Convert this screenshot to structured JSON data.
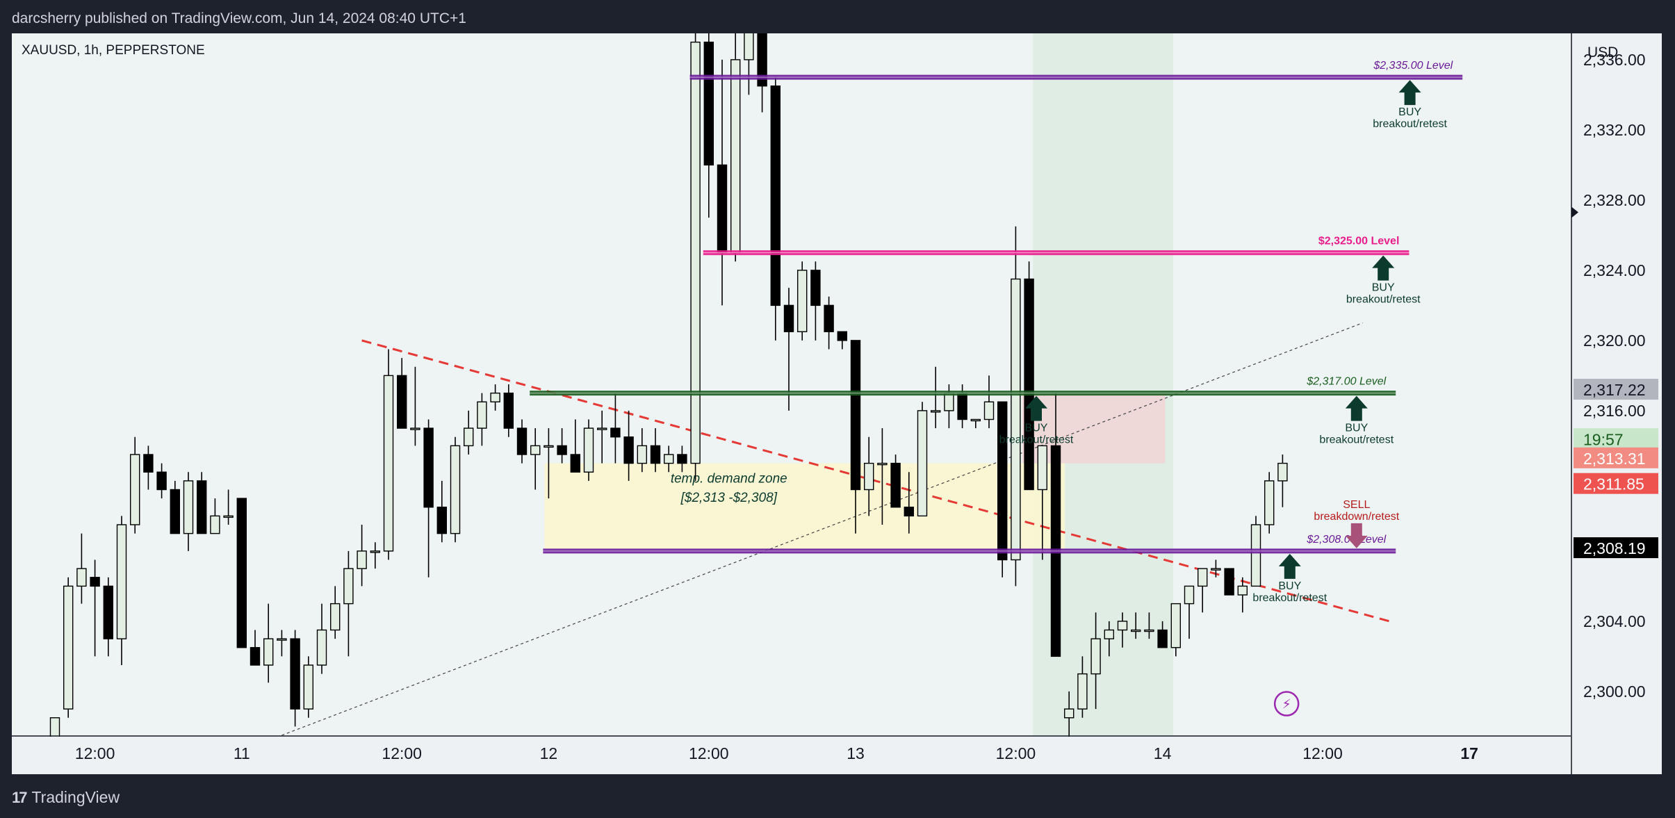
{
  "header": {
    "text": "darcsherry published on TradingView.com, Jun 14, 2024 08:40 UTC+1"
  },
  "chart": {
    "symbol_label": "XAUUSD, 1h, PEPPERSTONE",
    "currency": "USD"
  },
  "footer": {
    "brand": "TradingView"
  },
  "colors": {
    "bull_fill": "#e3efe3",
    "bear_fill": "#000000",
    "purple_level": "#6a1b9a",
    "pink_level": "#e91e8c",
    "green_level": "#1b5e20",
    "trend_red": "#e53935",
    "buy_arrow": "#0c3b2e",
    "sell_arrow": "#a8527a"
  },
  "chart_data": {
    "type": "candlestick",
    "symbol": "XAUUSD",
    "timeframe": "1h",
    "exchange": "PEPPERSTONE",
    "y_range": [
      2297.5,
      2337.5
    ],
    "y_ticks": [
      "2,336.00",
      "2,332.00",
      "2,328.00",
      "2,324.00",
      "2,320.00",
      "2,316.00",
      "2,304.00",
      "2,300.00"
    ],
    "y_tick_values": [
      2336,
      2332,
      2328,
      2324,
      2320,
      2316,
      2304,
      2300
    ],
    "x_labels": [
      "12:00",
      "11",
      "12:00",
      "12",
      "12:00",
      "13",
      "12:00",
      "14",
      "12:00",
      "17"
    ],
    "x_label_bars": [
      3,
      14,
      26,
      37,
      49,
      60,
      72,
      83,
      95,
      106
    ],
    "candles": [
      {
        "o": 2297,
        "h": 2298.5,
        "l": 2296,
        "c": 2298.5
      },
      {
        "o": 2299,
        "h": 2306.5,
        "l": 2298.5,
        "c": 2306
      },
      {
        "o": 2306,
        "h": 2309,
        "l": 2305,
        "c": 2307
      },
      {
        "o": 2306.5,
        "h": 2307.5,
        "l": 2302,
        "c": 2306
      },
      {
        "o": 2306,
        "h": 2306.5,
        "l": 2302,
        "c": 2303
      },
      {
        "o": 2303,
        "h": 2310,
        "l": 2301.5,
        "c": 2309.5
      },
      {
        "o": 2309.5,
        "h": 2314.5,
        "l": 2309,
        "c": 2313.5
      },
      {
        "o": 2313.5,
        "h": 2314,
        "l": 2311.5,
        "c": 2312.5
      },
      {
        "o": 2312.5,
        "h": 2313,
        "l": 2311,
        "c": 2311.5
      },
      {
        "o": 2311.5,
        "h": 2312,
        "l": 2309,
        "c": 2309
      },
      {
        "o": 2309,
        "h": 2312.5,
        "l": 2308,
        "c": 2312
      },
      {
        "o": 2312,
        "h": 2312.5,
        "l": 2309,
        "c": 2309
      },
      {
        "o": 2309,
        "h": 2311,
        "l": 2309,
        "c": 2310
      },
      {
        "o": 2310,
        "h": 2311.5,
        "l": 2309.5,
        "c": 2310
      },
      {
        "o": 2311,
        "h": 2311,
        "l": 2302.5,
        "c": 2302.5
      },
      {
        "o": 2302.5,
        "h": 2303.5,
        "l": 2301.5,
        "c": 2301.5
      },
      {
        "o": 2301.5,
        "h": 2305,
        "l": 2300.5,
        "c": 2303
      },
      {
        "o": 2303,
        "h": 2303.5,
        "l": 2302,
        "c": 2303
      },
      {
        "o": 2303,
        "h": 2303.5,
        "l": 2298,
        "c": 2299
      },
      {
        "o": 2299,
        "h": 2302,
        "l": 2298.5,
        "c": 2301.5
      },
      {
        "o": 2301.5,
        "h": 2305,
        "l": 2301,
        "c": 2303.5
      },
      {
        "o": 2303.5,
        "h": 2306,
        "l": 2303,
        "c": 2305
      },
      {
        "o": 2305,
        "h": 2308,
        "l": 2302,
        "c": 2307
      },
      {
        "o": 2307,
        "h": 2309.5,
        "l": 2306,
        "c": 2308
      },
      {
        "o": 2308,
        "h": 2308.5,
        "l": 2307,
        "c": 2308
      },
      {
        "o": 2308,
        "h": 2319.5,
        "l": 2307.5,
        "c": 2318
      },
      {
        "o": 2318,
        "h": 2319,
        "l": 2315,
        "c": 2315
      },
      {
        "o": 2315,
        "h": 2318.5,
        "l": 2314,
        "c": 2315
      },
      {
        "o": 2315,
        "h": 2315.5,
        "l": 2306.5,
        "c": 2310.5
      },
      {
        "o": 2310.5,
        "h": 2312,
        "l": 2308.5,
        "c": 2309
      },
      {
        "o": 2309,
        "h": 2314.5,
        "l": 2308.5,
        "c": 2314
      },
      {
        "o": 2314,
        "h": 2316,
        "l": 2313.5,
        "c": 2315
      },
      {
        "o": 2315,
        "h": 2317,
        "l": 2314,
        "c": 2316.5
      },
      {
        "o": 2316.5,
        "h": 2317.5,
        "l": 2316,
        "c": 2317
      },
      {
        "o": 2317,
        "h": 2317.5,
        "l": 2314.5,
        "c": 2315
      },
      {
        "o": 2315,
        "h": 2315.5,
        "l": 2313,
        "c": 2313.5
      },
      {
        "o": 2313.5,
        "h": 2315,
        "l": 2311.5,
        "c": 2314
      },
      {
        "o": 2314,
        "h": 2315,
        "l": 2311,
        "c": 2314
      },
      {
        "o": 2314,
        "h": 2315,
        "l": 2313,
        "c": 2313.5
      },
      {
        "o": 2313.5,
        "h": 2315.5,
        "l": 2312.5,
        "c": 2312.5
      },
      {
        "o": 2312.5,
        "h": 2315.5,
        "l": 2312,
        "c": 2315
      },
      {
        "o": 2315,
        "h": 2316,
        "l": 2313,
        "c": 2315
      },
      {
        "o": 2315,
        "h": 2317,
        "l": 2313,
        "c": 2314.5
      },
      {
        "o": 2314.5,
        "h": 2316,
        "l": 2312,
        "c": 2313
      },
      {
        "o": 2313,
        "h": 2315,
        "l": 2312.5,
        "c": 2314
      },
      {
        "o": 2314,
        "h": 2315,
        "l": 2312.5,
        "c": 2313
      },
      {
        "o": 2313,
        "h": 2314,
        "l": 2312.5,
        "c": 2313.5
      },
      {
        "o": 2313.5,
        "h": 2314,
        "l": 2312.5,
        "c": 2313
      },
      {
        "o": 2313,
        "h": 2340,
        "l": 2312,
        "c": 2337
      },
      {
        "o": 2337,
        "h": 2339,
        "l": 2327,
        "c": 2330
      },
      {
        "o": 2330,
        "h": 2336,
        "l": 2322,
        "c": 2325
      },
      {
        "o": 2325,
        "h": 2338,
        "l": 2324.5,
        "c": 2336
      },
      {
        "o": 2336,
        "h": 2339,
        "l": 2334,
        "c": 2338
      },
      {
        "o": 2338,
        "h": 2339.5,
        "l": 2333,
        "c": 2334.5
      },
      {
        "o": 2334.5,
        "h": 2335,
        "l": 2320,
        "c": 2322
      },
      {
        "o": 2322,
        "h": 2323,
        "l": 2316,
        "c": 2320.5
      },
      {
        "o": 2320.5,
        "h": 2324.5,
        "l": 2320,
        "c": 2324
      },
      {
        "o": 2324,
        "h": 2324.5,
        "l": 2320,
        "c": 2322
      },
      {
        "o": 2322,
        "h": 2322.5,
        "l": 2319.5,
        "c": 2320.5
      },
      {
        "o": 2320.5,
        "h": 2320.5,
        "l": 2319.5,
        "c": 2320
      },
      {
        "o": 2320,
        "h": 2320,
        "l": 2309,
        "c": 2311.5
      },
      {
        "o": 2311.5,
        "h": 2314.5,
        "l": 2310,
        "c": 2313
      },
      {
        "o": 2313,
        "h": 2315,
        "l": 2309.5,
        "c": 2313
      },
      {
        "o": 2313,
        "h": 2313.5,
        "l": 2310.5,
        "c": 2310.5
      },
      {
        "o": 2310.5,
        "h": 2312.5,
        "l": 2309,
        "c": 2310
      },
      {
        "o": 2310,
        "h": 2316.5,
        "l": 2310,
        "c": 2316
      },
      {
        "o": 2316,
        "h": 2318.5,
        "l": 2315,
        "c": 2316
      },
      {
        "o": 2316,
        "h": 2317.5,
        "l": 2315,
        "c": 2317
      },
      {
        "o": 2317,
        "h": 2317.5,
        "l": 2315,
        "c": 2315.5
      },
      {
        "o": 2315.5,
        "h": 2315.5,
        "l": 2315,
        "c": 2315.5
      },
      {
        "o": 2315.5,
        "h": 2318,
        "l": 2315,
        "c": 2316.5
      },
      {
        "o": 2316.5,
        "h": 2316.5,
        "l": 2306.5,
        "c": 2307.5
      },
      {
        "o": 2307.5,
        "h": 2326.5,
        "l": 2306,
        "c": 2323.5
      },
      {
        "o": 2323.5,
        "h": 2324.5,
        "l": 2311.5,
        "c": 2311.5
      },
      {
        "o": 2311.5,
        "h": 2314,
        "l": 2307.5,
        "c": 2314
      },
      {
        "o": 2314,
        "h": 2317,
        "l": 2302,
        "c": 2302
      },
      {
        "o": 2298.5,
        "h": 2300,
        "l": 2296.5,
        "c": 2299
      },
      {
        "o": 2299,
        "h": 2302,
        "l": 2298.5,
        "c": 2301
      },
      {
        "o": 2301,
        "h": 2304.5,
        "l": 2299,
        "c": 2303
      },
      {
        "o": 2303,
        "h": 2304,
        "l": 2302,
        "c": 2303.5
      },
      {
        "o": 2303.5,
        "h": 2304.5,
        "l": 2302.5,
        "c": 2304
      },
      {
        "o": 2303.5,
        "h": 2304.5,
        "l": 2303,
        "c": 2303.5
      },
      {
        "o": 2303.5,
        "h": 2304.5,
        "l": 2303,
        "c": 2303.5
      },
      {
        "o": 2303.5,
        "h": 2304,
        "l": 2302.5,
        "c": 2302.5
      },
      {
        "o": 2302.5,
        "h": 2305,
        "l": 2302,
        "c": 2305
      },
      {
        "o": 2305,
        "h": 2306,
        "l": 2303,
        "c": 2306
      },
      {
        "o": 2306,
        "h": 2307,
        "l": 2304.5,
        "c": 2307
      },
      {
        "o": 2307,
        "h": 2307.5,
        "l": 2306.5,
        "c": 2307
      },
      {
        "o": 2307,
        "h": 2307,
        "l": 2305.5,
        "c": 2305.5
      },
      {
        "o": 2305.5,
        "h": 2306.5,
        "l": 2304.5,
        "c": 2306
      },
      {
        "o": 2306,
        "h": 2310,
        "l": 2306,
        "c": 2309.5
      },
      {
        "o": 2309.5,
        "h": 2312.5,
        "l": 2309,
        "c": 2312
      },
      {
        "o": 2312,
        "h": 2313.5,
        "l": 2310.5,
        "c": 2313
      }
    ],
    "levels": [
      {
        "price": 2335,
        "label": "$2,335.00 Level",
        "color": "#6a1b9a",
        "italic": true,
        "from": 48,
        "to": 106
      },
      {
        "price": 2325,
        "label": "$2,325.00 Level",
        "color": "#e91e8c",
        "italic": false,
        "from": 49,
        "to": 102
      },
      {
        "price": 2317,
        "label": "$2,317.00 Level",
        "color": "#1b5e20",
        "italic": true,
        "from": 36,
        "to": 101
      },
      {
        "price": 2308,
        "label": "$2,308.00 Level",
        "color": "#6a1b9a",
        "italic": true,
        "from": 37,
        "to": 101
      }
    ],
    "signals": [
      {
        "type": "BUY",
        "label": "BUY",
        "sub": "breakout/retest",
        "bar": 100.5,
        "price": 2335
      },
      {
        "type": "BUY",
        "label": "BUY",
        "sub": "breakout/retest",
        "bar": 98.5,
        "price": 2325
      },
      {
        "type": "BUY",
        "label": "BUY",
        "sub": "breakout/retest",
        "bar": 96.5,
        "price": 2317
      },
      {
        "type": "SELL",
        "label": "SELL",
        "sub": "breakdown/retest",
        "bar": 96.5,
        "price": 2308
      },
      {
        "type": "BUY",
        "label": "BUY",
        "sub": "breakout/retest",
        "bar": 91.5,
        "price": 2308
      },
      {
        "type": "BUY",
        "label": "BUY",
        "sub": "breakout/retest",
        "bar": 72.5,
        "price": 2317
      }
    ],
    "demand_zone": {
      "label_line1": "temp. demand zone",
      "label_line2": "[$2,313 -$2,308]",
      "from_bar": 37,
      "to_bar": 76,
      "top": 2313,
      "bottom": 2308
    },
    "trendlines": [
      {
        "style": "dashed-red",
        "from": [
          23,
          2320
        ],
        "to": [
          100,
          2304
        ]
      },
      {
        "style": "dotted-dark",
        "from": [
          17,
          2297.5
        ],
        "to": [
          98,
          2321
        ]
      }
    ],
    "price_labels": [
      {
        "text": "2,317.22",
        "price": 2317.22,
        "bg": "#b2b5be",
        "fg": "#131722"
      },
      {
        "text": "19:57",
        "price": 2314.4,
        "bg": "#c8e6c9",
        "fg": "#1b5e20"
      },
      {
        "text": "2,313.31",
        "price": 2313.31,
        "bg": "#f28b82",
        "fg": "#ffffff"
      },
      {
        "text": "2,311.85",
        "price": 2311.85,
        "bg": "#ef5350",
        "fg": "#ffffff"
      },
      {
        "text": "2,308.19",
        "price": 2308.19,
        "bg": "#000000",
        "fg": "#ffffff"
      }
    ]
  }
}
